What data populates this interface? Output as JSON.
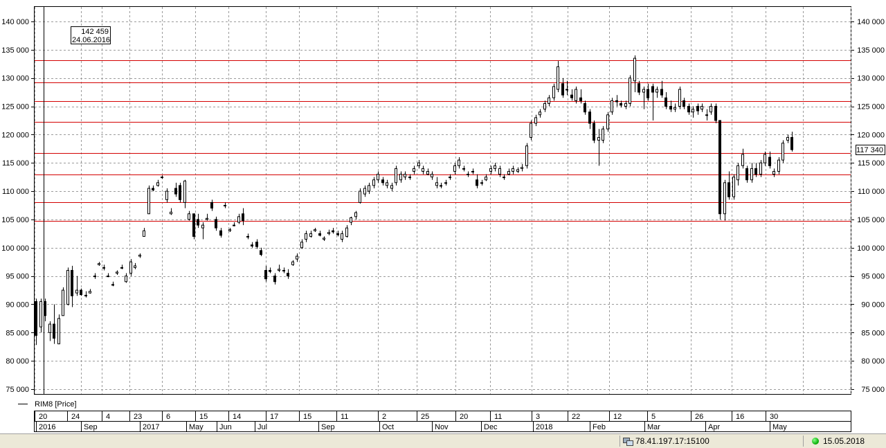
{
  "chart_data": {
    "type": "candlestick",
    "instrument_label": "RIM8 [Price]",
    "y_ticks": [
      "140 000",
      "135 000",
      "130 000",
      "125 000",
      "120 000",
      "115 000",
      "110 000",
      "105 000",
      "100 000",
      "95 000",
      "90 000",
      "85 000",
      "80 000",
      "75 000"
    ],
    "y_tick_values": [
      140000,
      135000,
      130000,
      125000,
      120000,
      115000,
      110000,
      105000,
      100000,
      95000,
      90000,
      85000,
      80000,
      75000
    ],
    "ylim": [
      73500,
      143500
    ],
    "last_price_label": "117 340",
    "last_price": 117340,
    "cursor_box": {
      "value": "142 459",
      "date": "24.06.2016"
    },
    "horizontal_levels": [
      133200,
      129200,
      125900,
      122200,
      116800,
      112900,
      108100,
      104800
    ],
    "x_day_ticks": [
      "20",
      "24",
      "4",
      "23",
      "6",
      "15",
      "14",
      "17",
      "15",
      "11",
      "2",
      "25",
      "20",
      "11",
      "3",
      "22",
      "12",
      "5",
      "26",
      "16",
      "30"
    ],
    "x_period_ticks": [
      "2016",
      "Sep",
      "2017",
      "May",
      "Jun",
      "Jul",
      "Sep",
      "Oct",
      "Nov",
      "Dec",
      "2018",
      "Feb",
      "Mar",
      "Apr",
      "May"
    ],
    "candles": [
      [
        90500,
        91000,
        82800,
        84500
      ],
      [
        86000,
        91000,
        85000,
        90500
      ],
      [
        90500,
        91000,
        87000,
        88000
      ],
      [
        85000,
        87000,
        83500,
        86500
      ],
      [
        86500,
        90000,
        83000,
        84000
      ],
      [
        83000,
        88200,
        83000,
        87500
      ],
      [
        88000,
        93000,
        88000,
        92500
      ],
      [
        90000,
        96500,
        89800,
        96000
      ],
      [
        96000,
        96800,
        89500,
        91500
      ],
      [
        92000,
        95000,
        91500,
        92500
      ],
      [
        92500,
        92800,
        91500,
        91700
      ],
      [
        91500,
        92300,
        91200,
        91600
      ],
      [
        92000,
        92700,
        91900,
        92300
      ],
      [
        95000,
        95500,
        94500,
        95000
      ],
      [
        97000,
        97500,
        96800,
        97200
      ],
      [
        96500,
        97000,
        96000,
        96500
      ],
      [
        95000,
        95500,
        94800,
        95000
      ],
      [
        93500,
        94000,
        93200,
        93500
      ],
      [
        95500,
        96000,
        95200,
        95700
      ],
      [
        96500,
        97000,
        96200,
        96500
      ],
      [
        94000,
        95500,
        93800,
        95000
      ],
      [
        95500,
        98000,
        95000,
        97500
      ],
      [
        96500,
        97300,
        96200,
        96800
      ],
      [
        98500,
        99000,
        98200,
        98700
      ],
      [
        102000,
        103500,
        102000,
        103000
      ],
      [
        106000,
        111000,
        106000,
        110500
      ],
      [
        110500,
        111000,
        110000,
        110200
      ],
      [
        111000,
        112000,
        110800,
        111500
      ],
      [
        112500,
        112800,
        112200,
        112500
      ],
      [
        108500,
        110500,
        108000,
        110000
      ],
      [
        106000,
        107000,
        105800,
        106300
      ],
      [
        110500,
        111500,
        109000,
        109500
      ],
      [
        111000,
        111500,
        108000,
        108500
      ],
      [
        108000,
        112000,
        107000,
        111800
      ],
      [
        105000,
        106500,
        104800,
        106000
      ],
      [
        106000,
        106000,
        101500,
        102000
      ],
      [
        105000,
        106000,
        103500,
        104000
      ],
      [
        103500,
        104500,
        101500,
        104000
      ],
      [
        105000,
        106000,
        104800,
        105200
      ],
      [
        108000,
        108500,
        106500,
        107000
      ],
      [
        105000,
        105500,
        103000,
        103500
      ],
      [
        103000,
        103500,
        101800,
        102200
      ],
      [
        107500,
        108000,
        107000,
        107500
      ],
      [
        103000,
        103500,
        102800,
        103200
      ],
      [
        104000,
        104500,
        103800,
        104000
      ],
      [
        104500,
        106000,
        104200,
        105500
      ],
      [
        106000,
        107000,
        104000,
        104800
      ],
      [
        102000,
        102500,
        101500,
        102000
      ],
      [
        100500,
        101000,
        100000,
        100300
      ],
      [
        101000,
        101500,
        99800,
        100200
      ],
      [
        99500,
        100000,
        98500,
        98800
      ],
      [
        96000,
        96800,
        94000,
        94500
      ],
      [
        96000,
        96500,
        95500,
        95800
      ],
      [
        95000,
        95500,
        93500,
        94000
      ],
      [
        96000,
        97000,
        95700,
        96200
      ],
      [
        96000,
        96500,
        95500,
        96000
      ],
      [
        95500,
        96200,
        94500,
        95000
      ],
      [
        97000,
        97800,
        96800,
        97500
      ],
      [
        98000,
        99000,
        97500,
        98500
      ],
      [
        100000,
        101500,
        99800,
        101000
      ],
      [
        101500,
        103000,
        101000,
        102500
      ],
      [
        102000,
        103000,
        101800,
        102500
      ],
      [
        103000,
        103500,
        102800,
        103200
      ],
      [
        102500,
        103000,
        102000,
        102200
      ],
      [
        101500,
        102000,
        101200,
        101700
      ],
      [
        102500,
        103200,
        102200,
        102700
      ],
      [
        103000,
        103500,
        102500,
        102800
      ],
      [
        102500,
        103000,
        102000,
        102300
      ],
      [
        101500,
        103000,
        101000,
        102500
      ],
      [
        102000,
        104000,
        101800,
        103500
      ],
      [
        104500,
        105500,
        104000,
        105300
      ],
      [
        105500,
        106500,
        105000,
        106200
      ],
      [
        108000,
        110500,
        107800,
        110000
      ],
      [
        109500,
        111000,
        109000,
        110500
      ],
      [
        110000,
        111500,
        109500,
        111000
      ],
      [
        111000,
        112500,
        110500,
        112000
      ],
      [
        112000,
        113500,
        111500,
        113000
      ],
      [
        112000,
        112500,
        111000,
        111500
      ],
      [
        111000,
        112000,
        110500,
        111500
      ],
      [
        110500,
        111500,
        110000,
        111000
      ],
      [
        111500,
        114500,
        111000,
        114000
      ],
      [
        112000,
        113500,
        111500,
        113000
      ],
      [
        112500,
        113500,
        112000,
        113000
      ],
      [
        112500,
        113000,
        112000,
        112500
      ],
      [
        113500,
        114500,
        113000,
        114000
      ],
      [
        114500,
        115500,
        114000,
        115000
      ],
      [
        113500,
        114500,
        113000,
        114000
      ],
      [
        113000,
        114000,
        112800,
        113500
      ],
      [
        112500,
        113500,
        112000,
        113000
      ],
      [
        111000,
        112500,
        110500,
        111500
      ],
      [
        111000,
        111500,
        110500,
        111000
      ],
      [
        111500,
        112000,
        111000,
        111500
      ],
      [
        112500,
        113000,
        112000,
        112500
      ],
      [
        113500,
        115000,
        113000,
        114500
      ],
      [
        114500,
        116000,
        114000,
        115500
      ],
      [
        114000,
        114500,
        113500,
        114000
      ],
      [
        113000,
        113500,
        112500,
        113000
      ],
      [
        113500,
        114000,
        113000,
        113500
      ],
      [
        112000,
        113000,
        110500,
        111000
      ],
      [
        111500,
        112000,
        111000,
        111500
      ],
      [
        112000,
        113000,
        111800,
        112500
      ],
      [
        113500,
        114500,
        113000,
        114000
      ],
      [
        114000,
        115000,
        113500,
        114500
      ],
      [
        113000,
        114500,
        112500,
        114000
      ],
      [
        112500,
        113000,
        112000,
        112500
      ],
      [
        113000,
        114000,
        112800,
        113500
      ],
      [
        113500,
        114500,
        113000,
        114000
      ],
      [
        113500,
        114200,
        113200,
        113800
      ],
      [
        114000,
        114800,
        113500,
        114200
      ],
      [
        114500,
        118500,
        114000,
        118000
      ],
      [
        119500,
        122500,
        119000,
        122000
      ],
      [
        122000,
        123500,
        121500,
        123000
      ],
      [
        123500,
        124500,
        123000,
        124000
      ],
      [
        124500,
        126000,
        124000,
        125500
      ],
      [
        125500,
        127000,
        125000,
        126500
      ],
      [
        126500,
        129000,
        126000,
        128500
      ],
      [
        128000,
        133000,
        127500,
        132000
      ],
      [
        129000,
        130000,
        126500,
        127000
      ],
      [
        128000,
        129500,
        127000,
        128000
      ],
      [
        127000,
        128000,
        126000,
        126500
      ],
      [
        126000,
        128500,
        125500,
        128000
      ],
      [
        126500,
        128000,
        125500,
        126000
      ],
      [
        125500,
        126000,
        123500,
        124000
      ],
      [
        124000,
        124500,
        121000,
        122000
      ],
      [
        122000,
        122500,
        118500,
        119000
      ],
      [
        119000,
        121000,
        114500,
        119500
      ],
      [
        119000,
        121500,
        118500,
        121000
      ],
      [
        121000,
        124000,
        120500,
        123500
      ],
      [
        124000,
        126500,
        123500,
        126000
      ],
      [
        126000,
        127000,
        125000,
        125800
      ],
      [
        125500,
        126000,
        124800,
        125200
      ],
      [
        125000,
        126000,
        124500,
        125500
      ],
      [
        125500,
        130500,
        125000,
        130000
      ],
      [
        129500,
        134000,
        127500,
        133500
      ],
      [
        129000,
        129500,
        127000,
        127500
      ],
      [
        127500,
        128500,
        124500,
        128000
      ],
      [
        128000,
        129000,
        126000,
        126500
      ],
      [
        128500,
        129000,
        122500,
        127500
      ],
      [
        127500,
        128500,
        126500,
        128000
      ],
      [
        128000,
        129500,
        126500,
        127000
      ],
      [
        126500,
        127500,
        124500,
        125000
      ],
      [
        125000,
        126000,
        124000,
        124500
      ],
      [
        124500,
        125500,
        124000,
        124800
      ],
      [
        125000,
        128500,
        124500,
        128000
      ],
      [
        126000,
        126500,
        124500,
        125000
      ],
      [
        125000,
        125500,
        123500,
        124000
      ],
      [
        124000,
        125000,
        123000,
        124500
      ],
      [
        125000,
        125500,
        123500,
        124200
      ],
      [
        124500,
        125500,
        124000,
        125000
      ],
      [
        123500,
        124500,
        122500,
        123500
      ],
      [
        124000,
        125500,
        123500,
        125000
      ],
      [
        125000,
        125500,
        122000,
        122500
      ],
      [
        122500,
        122500,
        105000,
        106000
      ],
      [
        106000,
        112000,
        104800,
        111500
      ],
      [
        111500,
        113500,
        108500,
        109000
      ],
      [
        109000,
        113000,
        108500,
        112500
      ],
      [
        112000,
        115000,
        111000,
        114500
      ],
      [
        114500,
        117500,
        114000,
        116500
      ],
      [
        114000,
        114500,
        111500,
        112000
      ],
      [
        112000,
        115000,
        111500,
        114000
      ],
      [
        114000,
        115000,
        112500,
        113000
      ],
      [
        113000,
        115500,
        112500,
        115000
      ],
      [
        115000,
        117000,
        114500,
        116500
      ],
      [
        116000,
        117000,
        114000,
        114500
      ],
      [
        113000,
        114000,
        112500,
        113500
      ],
      [
        113500,
        116000,
        113000,
        115500
      ],
      [
        115500,
        119000,
        115000,
        118500
      ],
      [
        119000,
        120000,
        118500,
        119500
      ],
      [
        119500,
        120500,
        117000,
        117340
      ]
    ]
  }
}
